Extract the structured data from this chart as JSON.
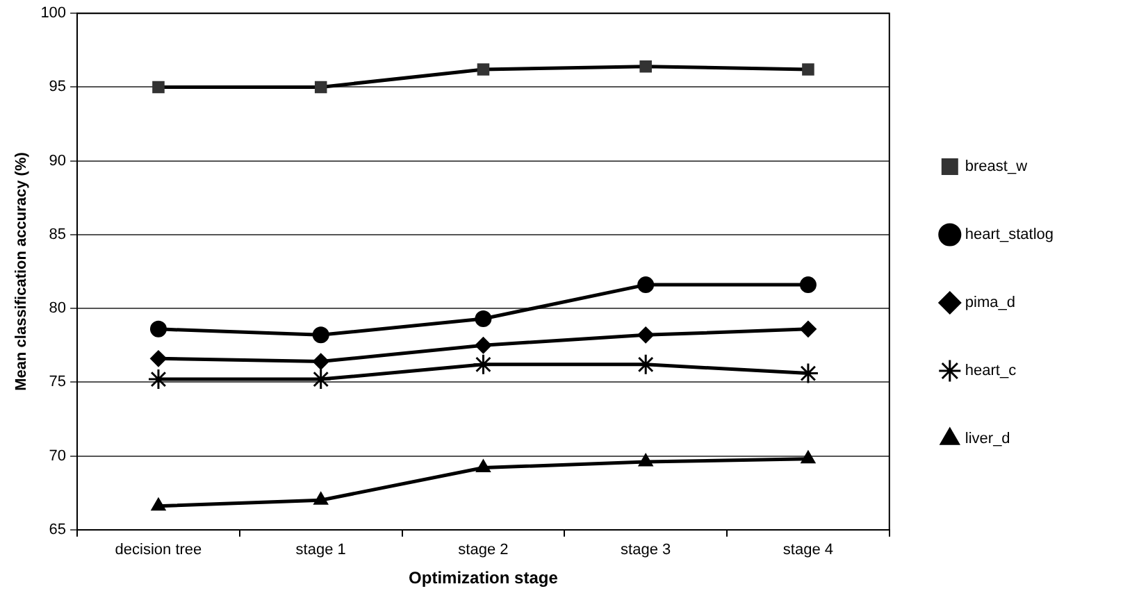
{
  "chart_data": {
    "type": "line",
    "xlabel": "Optimization stage",
    "ylabel": "Mean classification accuracy (%)",
    "categories": [
      "decision tree",
      "stage 1",
      "stage 2",
      "stage 3",
      "stage 4"
    ],
    "series": [
      {
        "name": "breast_w",
        "color": "#333333",
        "marker": "square",
        "values": [
          95.0,
          95.0,
          96.2,
          96.4,
          96.2
        ]
      },
      {
        "name": "heart_statlog",
        "color": "#000000",
        "marker": "circle",
        "values": [
          78.6,
          78.2,
          79.3,
          81.6,
          81.6
        ]
      },
      {
        "name": "pima_d",
        "color": "#000000",
        "marker": "diamond",
        "values": [
          76.6,
          76.4,
          77.5,
          78.2,
          78.6
        ]
      },
      {
        "name": "heart_c",
        "color": "#000000",
        "marker": "cross",
        "values": [
          75.2,
          75.2,
          76.2,
          76.2,
          75.6
        ]
      },
      {
        "name": "liver_d",
        "color": "#000000",
        "marker": "triangle",
        "values": [
          66.6,
          67.0,
          69.2,
          69.6,
          69.8
        ]
      }
    ],
    "ylim": [
      65,
      100
    ],
    "yticks": [
      65,
      70,
      75,
      80,
      85,
      90,
      95,
      100
    ],
    "grid": "y",
    "legend": "right",
    "line_style": "solid"
  }
}
